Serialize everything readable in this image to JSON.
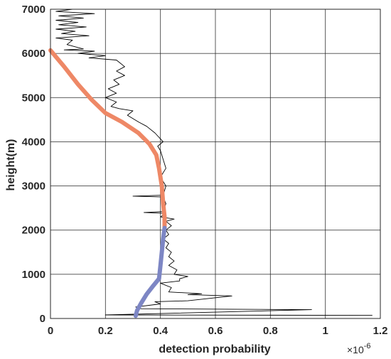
{
  "chart_data": {
    "type": "line",
    "title": "",
    "xlabel": "detection probability",
    "ylabel": "height(m)",
    "x_exponent_label": "×10",
    "x_exponent_power": "-6",
    "xlim": [
      0,
      1.2
    ],
    "ylim": [
      0,
      7000
    ],
    "xticks": [
      0,
      0.2,
      0.4,
      0.6,
      0.8,
      1,
      1.2
    ],
    "xtick_labels": [
      "0",
      "0.2",
      "0.4",
      "0.6",
      "0.8",
      "1",
      "1.2"
    ],
    "yticks": [
      0,
      1000,
      2000,
      3000,
      4000,
      5000,
      6000,
      7000
    ],
    "ytick_labels": [
      "0",
      "1000",
      "2000",
      "3000",
      "4000",
      "5000",
      "6000",
      "7000"
    ],
    "grid": true,
    "legend": "none",
    "series": [
      {
        "style": "thin-black",
        "color": "#000000",
        "points": [
          [
            1.17,
            70
          ],
          [
            0.2,
            80
          ],
          [
            0.95,
            200
          ],
          [
            0.33,
            220
          ],
          [
            0.31,
            260
          ],
          [
            0.4,
            330
          ],
          [
            0.38,
            380
          ],
          [
            0.5,
            400
          ],
          [
            0.66,
            510
          ],
          [
            0.5,
            540
          ],
          [
            0.55,
            560
          ],
          [
            0.43,
            600
          ],
          [
            0.44,
            700
          ],
          [
            0.4,
            800
          ],
          [
            0.47,
            850
          ],
          [
            0.47,
            900
          ],
          [
            0.5,
            950
          ],
          [
            0.45,
            1000
          ],
          [
            0.46,
            1100
          ],
          [
            0.43,
            1200
          ],
          [
            0.45,
            1300
          ],
          [
            0.43,
            1400
          ],
          [
            0.44,
            1500
          ],
          [
            0.42,
            1600
          ],
          [
            0.43,
            1700
          ],
          [
            0.41,
            1800
          ],
          [
            0.43,
            1900
          ],
          [
            0.42,
            2000
          ],
          [
            0.44,
            2100
          ],
          [
            0.42,
            2200
          ],
          [
            0.45,
            2250
          ],
          [
            0.4,
            2300
          ],
          [
            0.42,
            2380
          ],
          [
            0.34,
            2400
          ],
          [
            0.41,
            2420
          ],
          [
            0.42,
            2600
          ],
          [
            0.41,
            2750
          ],
          [
            0.3,
            2770
          ],
          [
            0.41,
            2790
          ],
          [
            0.42,
            3000
          ],
          [
            0.4,
            3200
          ],
          [
            0.42,
            3400
          ],
          [
            0.41,
            3600
          ],
          [
            0.4,
            3800
          ],
          [
            0.39,
            3900
          ],
          [
            0.41,
            4000
          ],
          [
            0.38,
            4200
          ],
          [
            0.35,
            4350
          ],
          [
            0.32,
            4450
          ],
          [
            0.28,
            4600
          ],
          [
            0.3,
            4700
          ],
          [
            0.25,
            4750
          ],
          [
            0.22,
            4800
          ],
          [
            0.24,
            4900
          ],
          [
            0.2,
            5000
          ],
          [
            0.24,
            5100
          ],
          [
            0.21,
            5200
          ],
          [
            0.25,
            5300
          ],
          [
            0.23,
            5400
          ],
          [
            0.27,
            5500
          ],
          [
            0.24,
            5600
          ],
          [
            0.27,
            5700
          ],
          [
            0.25,
            5800
          ],
          [
            0.24,
            5850
          ],
          [
            0.14,
            5900
          ],
          [
            0.2,
            5950
          ],
          [
            0.1,
            6000
          ],
          [
            0.16,
            6050
          ],
          [
            0.05,
            6080
          ],
          [
            0.12,
            6100
          ],
          [
            0.06,
            6200
          ],
          [
            0.08,
            6300
          ],
          [
            0.02,
            6350
          ],
          [
            0.14,
            6400
          ],
          [
            0.04,
            6450
          ],
          [
            0.09,
            6500
          ],
          [
            0.02,
            6550
          ],
          [
            0.13,
            6600
          ],
          [
            0.03,
            6650
          ],
          [
            0.1,
            6700
          ],
          [
            0.02,
            6750
          ],
          [
            0.12,
            6800
          ],
          [
            0.03,
            6850
          ],
          [
            0.16,
            6900
          ],
          [
            0.02,
            6950
          ],
          [
            0.08,
            7000
          ]
        ]
      },
      {
        "style": "thick-orange",
        "color": "#ee8866",
        "points": [
          [
            0.0,
            6070
          ],
          [
            0.05,
            5700
          ],
          [
            0.1,
            5300
          ],
          [
            0.15,
            4950
          ],
          [
            0.2,
            4650
          ],
          [
            0.26,
            4450
          ],
          [
            0.32,
            4200
          ],
          [
            0.36,
            3950
          ],
          [
            0.385,
            3700
          ],
          [
            0.395,
            3400
          ],
          [
            0.405,
            3000
          ],
          [
            0.41,
            2600
          ],
          [
            0.415,
            2300
          ],
          [
            0.415,
            2050
          ]
        ]
      },
      {
        "style": "thick-blue",
        "color": "#7d86c4",
        "points": [
          [
            0.415,
            2050
          ],
          [
            0.41,
            1800
          ],
          [
            0.405,
            1500
          ],
          [
            0.4,
            1200
          ],
          [
            0.395,
            900
          ],
          [
            0.375,
            750
          ],
          [
            0.35,
            550
          ],
          [
            0.33,
            350
          ],
          [
            0.315,
            180
          ],
          [
            0.31,
            60
          ]
        ]
      }
    ]
  }
}
